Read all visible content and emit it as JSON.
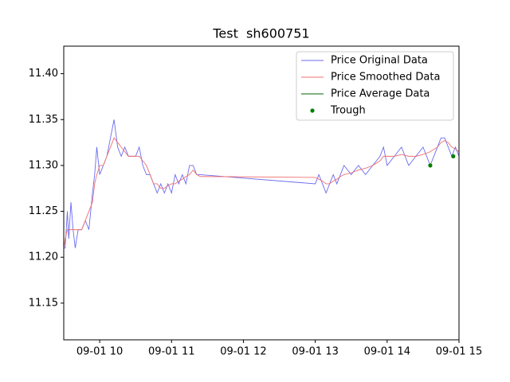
{
  "chart_data": {
    "type": "line",
    "title": "Test  sh600751",
    "x": [
      9.5,
      9.52,
      9.55,
      9.57,
      9.6,
      9.63,
      9.66,
      9.7,
      9.75,
      9.8,
      9.85,
      9.9,
      9.93,
      9.96,
      10.0,
      10.05,
      10.1,
      10.15,
      10.2,
      10.25,
      10.3,
      10.35,
      10.4,
      10.5,
      10.55,
      10.6,
      10.65,
      10.7,
      10.75,
      10.8,
      10.85,
      10.9,
      10.95,
      11.0,
      11.05,
      11.1,
      11.15,
      11.2,
      11.25,
      11.3,
      11.35,
      11.4,
      13.0,
      13.05,
      13.1,
      13.15,
      13.2,
      13.25,
      13.3,
      13.35,
      13.4,
      13.5,
      13.6,
      13.7,
      13.8,
      13.9,
      13.95,
      14.0,
      14.1,
      14.2,
      14.3,
      14.4,
      14.5,
      14.6,
      14.7,
      14.75,
      14.8,
      14.85,
      14.9,
      14.95,
      15.0
    ],
    "series": [
      {
        "name": "Price Original Data",
        "color": "#6b6bf0",
        "values": [
          11.21,
          11.21,
          11.25,
          11.22,
          11.26,
          11.23,
          11.21,
          11.23,
          11.23,
          11.24,
          11.23,
          11.27,
          11.29,
          11.32,
          11.29,
          11.3,
          11.31,
          11.33,
          11.35,
          11.32,
          11.31,
          11.32,
          11.31,
          11.31,
          11.32,
          11.3,
          11.29,
          11.29,
          11.28,
          11.27,
          11.28,
          11.27,
          11.28,
          11.27,
          11.29,
          11.28,
          11.29,
          11.28,
          11.3,
          11.3,
          11.29,
          11.29,
          11.28,
          11.29,
          11.28,
          11.27,
          11.28,
          11.29,
          11.28,
          11.29,
          11.3,
          11.29,
          11.3,
          11.29,
          11.3,
          11.31,
          11.32,
          11.3,
          11.31,
          11.32,
          11.3,
          11.31,
          11.32,
          11.3,
          11.32,
          11.33,
          11.33,
          11.32,
          11.31,
          11.32,
          11.31
        ]
      },
      {
        "name": "Price Smoothed Data",
        "color": "#f07070",
        "values": [
          11.21,
          11.22,
          11.23,
          11.23,
          11.23,
          11.23,
          11.23,
          11.23,
          11.23,
          11.24,
          11.25,
          11.26,
          11.28,
          11.29,
          11.3,
          11.3,
          11.31,
          11.32,
          11.33,
          11.325,
          11.32,
          11.315,
          11.31,
          11.31,
          11.31,
          11.305,
          11.3,
          11.29,
          11.28,
          11.28,
          11.275,
          11.275,
          11.278,
          11.28,
          11.28,
          11.283,
          11.285,
          11.288,
          11.29,
          11.295,
          11.29,
          11.288,
          11.287,
          11.285,
          11.283,
          11.28,
          11.28,
          11.283,
          11.285,
          11.288,
          11.29,
          11.292,
          11.295,
          11.297,
          11.3,
          11.305,
          11.31,
          11.31,
          11.31,
          11.312,
          11.31,
          11.31,
          11.312,
          11.315,
          11.32,
          11.325,
          11.327,
          11.325,
          11.32,
          11.318,
          11.315
        ]
      },
      {
        "name": "Price Average Data",
        "color": "#006400"
      },
      {
        "name": "Trough",
        "type": "scatter",
        "color": "#008000",
        "x": [
          14.6,
          14.92
        ],
        "values": [
          11.3,
          11.31
        ]
      }
    ],
    "xlim": [
      9.5,
      15
    ],
    "ylim": [
      11.11,
      11.43
    ],
    "xticks": [
      {
        "value": 10,
        "label": "09-01 10"
      },
      {
        "value": 11,
        "label": "09-01 11"
      },
      {
        "value": 12,
        "label": "09-01 12"
      },
      {
        "value": 13,
        "label": "09-01 13"
      },
      {
        "value": 14,
        "label": "09-01 14"
      },
      {
        "value": 15,
        "label": "09-01 15"
      }
    ],
    "yticks": [
      11.15,
      {
        "value": 11.2,
        "label": "11.20"
      },
      11.25,
      {
        "value": 11.3,
        "label": "11.30"
      },
      11.35,
      {
        "value": 11.4,
        "label": "11.40"
      }
    ],
    "legend": "upper right"
  }
}
